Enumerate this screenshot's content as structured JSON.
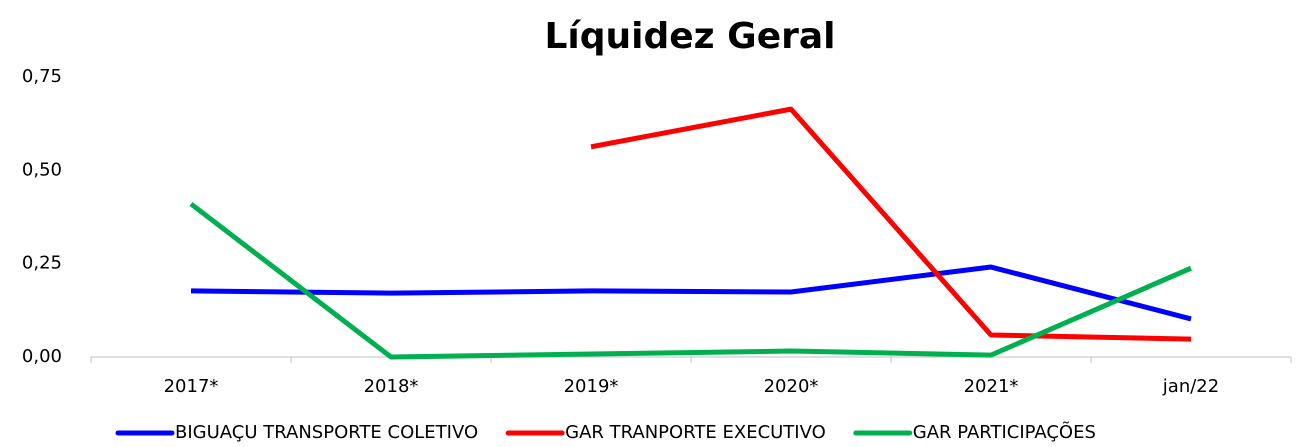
{
  "chart_data": {
    "type": "line",
    "title": "Líquidez Geral",
    "categories": [
      "2017*",
      "2018*",
      "2019*",
      "2020*",
      "2021*",
      "jan/22"
    ],
    "series": [
      {
        "name": "BIGUAÇU TRANSPORTE COLETIVO",
        "color": "#0000ff",
        "values": [
          0.177,
          0.171,
          0.177,
          0.174,
          0.241,
          0.102
        ]
      },
      {
        "name": "GAR TRANPORTE EXECUTIVO",
        "color": "#ff0000",
        "values": [
          null,
          null,
          0.563,
          0.664,
          0.059,
          0.048
        ]
      },
      {
        "name": "GAR PARTICIPAÇÕES",
        "color": "#00b050",
        "values": [
          0.41,
          0,
          0.008,
          0.016,
          0.005,
          0.238
        ]
      }
    ],
    "ylim": [
      0,
      0.75
    ],
    "yticks": [
      {
        "value": 0,
        "label": "0,00"
      },
      {
        "value": 0.25,
        "label": "0,25"
      },
      {
        "value": 0.5,
        "label": "0,50"
      },
      {
        "value": 0.75,
        "label": "0,75"
      }
    ],
    "grid": false,
    "legend": "bottom"
  }
}
